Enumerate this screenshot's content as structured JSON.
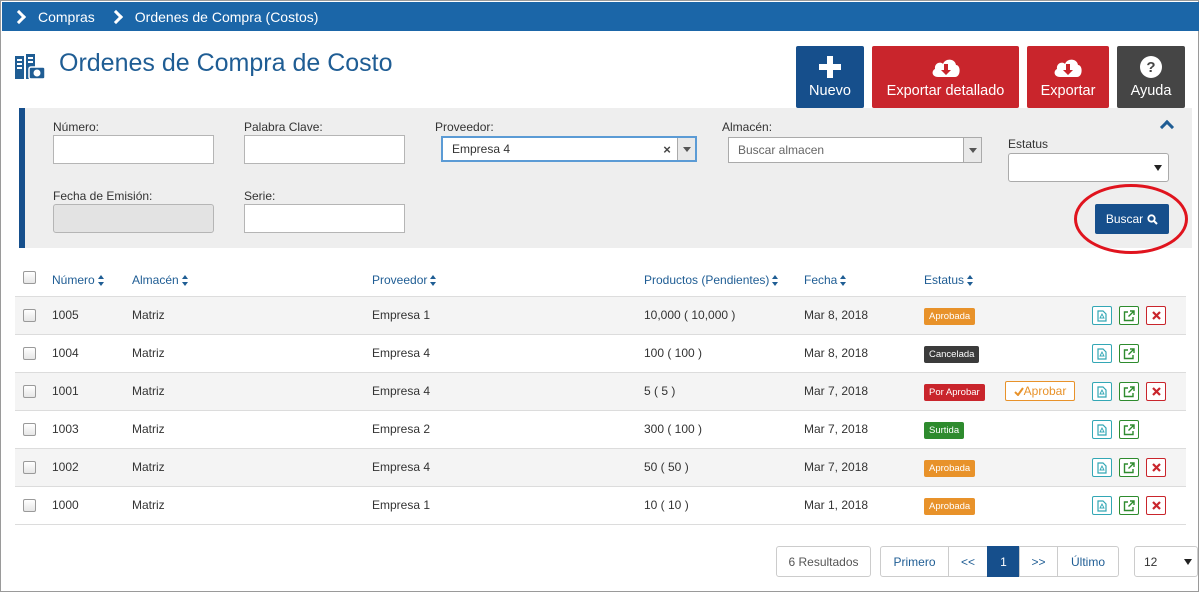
{
  "breadcrumb": {
    "items": [
      "Compras",
      "Ordenes de Compra (Costos)"
    ]
  },
  "page": {
    "title": "Ordenes de Compra de Costo"
  },
  "actions": {
    "nuevo": "Nuevo",
    "exportar_detallado": "Exportar detallado",
    "exportar": "Exportar",
    "ayuda": "Ayuda"
  },
  "filters": {
    "numero_label": "Número:",
    "numero_value": "",
    "palabra_label": "Palabra Clave:",
    "palabra_value": "",
    "proveedor_label": "Proveedor:",
    "proveedor_value": "Empresa 4",
    "almacen_label": "Almacén:",
    "almacen_placeholder": "Buscar almacen",
    "estatus_label": "Estatus",
    "estatus_value": "",
    "fecha_label": "Fecha de Emisión:",
    "fecha_value": "",
    "serie_label": "Serie:",
    "serie_value": "",
    "buscar": "Buscar"
  },
  "table": {
    "headers": {
      "numero": "Número",
      "almacen": "Almacén",
      "proveedor": "Proveedor",
      "productos": "Productos (Pendientes)",
      "fecha": "Fecha",
      "estatus": "Estatus"
    },
    "rows": [
      {
        "numero": "1005",
        "almacen": "Matriz",
        "proveedor": "Empresa 1",
        "productos": "10,000 ( 10,000 )",
        "fecha": "Mar 8, 2018",
        "estatus": "Aprobada",
        "aprobar": "",
        "delete": true
      },
      {
        "numero": "1004",
        "almacen": "Matriz",
        "proveedor": "Empresa 4",
        "productos": "100 ( 100 )",
        "fecha": "Mar 8, 2018",
        "estatus": "Cancelada",
        "aprobar": "",
        "delete": false
      },
      {
        "numero": "1001",
        "almacen": "Matriz",
        "proveedor": "Empresa 4",
        "productos": "5 ( 5 )",
        "fecha": "Mar 7, 2018",
        "estatus": "Por Aprobar",
        "aprobar": "Aprobar",
        "delete": true
      },
      {
        "numero": "1003",
        "almacen": "Matriz",
        "proveedor": "Empresa 2",
        "productos": "300 ( 100 )",
        "fecha": "Mar 7, 2018",
        "estatus": "Surtida",
        "aprobar": "",
        "delete": false
      },
      {
        "numero": "1002",
        "almacen": "Matriz",
        "proveedor": "Empresa 4",
        "productos": "50 ( 50 )",
        "fecha": "Mar 7, 2018",
        "estatus": "Aprobada",
        "aprobar": "",
        "delete": true
      },
      {
        "numero": "1000",
        "almacen": "Matriz",
        "proveedor": "Empresa 1",
        "productos": "10 ( 10 )",
        "fecha": "Mar 1, 2018",
        "estatus": "Aprobada",
        "aprobar": "",
        "delete": true
      }
    ]
  },
  "pagination": {
    "results": "6 Resultados",
    "primero": "Primero",
    "prev": "<<",
    "current": "1",
    "next": ">>",
    "ultimo": "Último",
    "page_size": "12"
  },
  "colors": {
    "primary": "#164f8c",
    "danger": "#c9252c",
    "warning": "#e8922a",
    "success": "#2e8b2e",
    "dark": "#3b3b3b",
    "highlight": "#e0141e"
  }
}
